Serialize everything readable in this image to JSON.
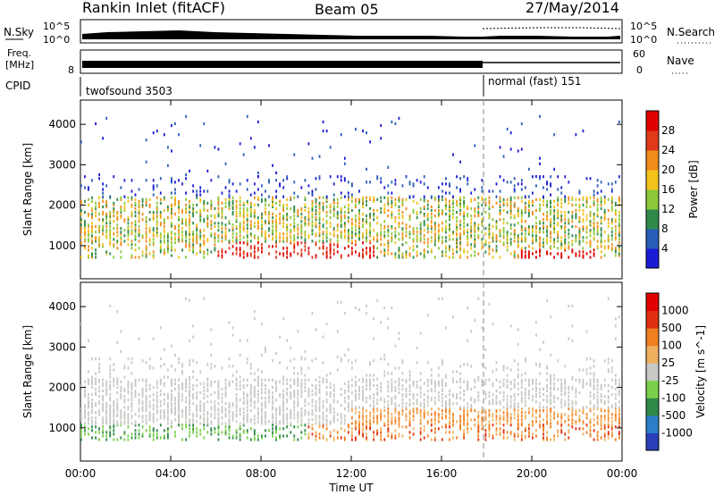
{
  "header": {
    "station": "Rankin Inlet (fitACF)",
    "beam": "Beam 05",
    "date": "27/May/2014"
  },
  "noise_panel": {
    "left_label": "N.Sky",
    "right_label": "N.Search",
    "ticks_left": [
      "10^5",
      "10^0"
    ],
    "ticks_right": [
      "10^5",
      "10^0"
    ]
  },
  "freq_panel": {
    "left_label_1": "Freq.",
    "left_label_2": "[MHz]",
    "left_tick": "8",
    "right_label": "Nave",
    "right_ticks": [
      "60",
      "0"
    ]
  },
  "cpid_panel": {
    "label": "CPID",
    "modes": [
      {
        "name": "twofsound 3503",
        "start_hour": 0,
        "end_hour": 18
      },
      {
        "name": "normal (fast) 151",
        "start_hour": 18,
        "end_hour": 24
      }
    ]
  },
  "chart_data": [
    {
      "type": "heatmap",
      "title": "",
      "xlabel": "Time UT",
      "ylabel": "Slant Range [km]",
      "x_ticks": [
        "00:00",
        "04:00",
        "08:00",
        "12:00",
        "16:00",
        "20:00",
        "00:00"
      ],
      "xlim_hours": [
        0,
        24
      ],
      "y_ticks": [
        "1000",
        "2000",
        "3000",
        "4000"
      ],
      "ylim": [
        180,
        4600
      ],
      "colorbar": {
        "label": "Power [dB]",
        "ticks": [
          "4",
          "8",
          "12",
          "16",
          "20",
          "24",
          "28"
        ],
        "range": [
          0,
          30
        ],
        "colors": [
          "#1b1bd6",
          "#2a5db8",
          "#2f8a4a",
          "#8cc83a",
          "#f2c21a",
          "#f08c1a",
          "#e03a1a",
          "#e00000"
        ]
      },
      "mode_change_hour": 18
    },
    {
      "type": "heatmap",
      "title": "",
      "xlabel": "Time UT",
      "ylabel": "Slant Range [km]",
      "x_ticks": [
        "00:00",
        "04:00",
        "08:00",
        "12:00",
        "16:00",
        "20:00",
        "00:00"
      ],
      "xlim_hours": [
        0,
        24
      ],
      "y_ticks": [
        "1000",
        "2000",
        "3000",
        "4000"
      ],
      "ylim": [
        180,
        4600
      ],
      "colorbar": {
        "label": "Velocity [m s^-1]",
        "ticks": [
          "1000",
          "500",
          "100",
          "25",
          "-25",
          "-100",
          "-500",
          "-1000"
        ],
        "colors": [
          "#2a3fb8",
          "#2a7fc8",
          "#2f8a4a",
          "#7ad04a",
          "#c8c8c4",
          "#f0b060",
          "#f08020",
          "#e03010",
          "#e00000"
        ]
      },
      "mode_change_hour": 18
    }
  ]
}
